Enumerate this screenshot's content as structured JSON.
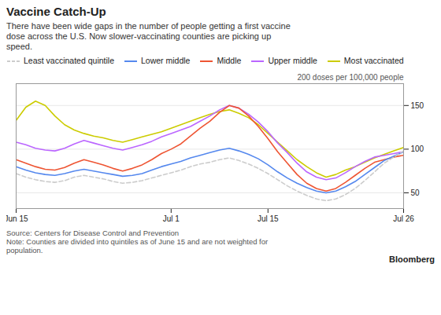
{
  "chart_data": {
    "type": "line",
    "title": "Vaccine Catch-Up",
    "subtitle": "There have been wide gaps in the number of people getting a first vaccine\ndose across the U.S. Now slower-vaccinating counties are picking up\nspeed.",
    "annotations": [
      "200 doses per 100,000 people"
    ],
    "source": "Source: Centers for Disease Control and Prevention",
    "note": "Note: Counties are divided into quintiles as of June 15 and are not weighted for\npopulation.",
    "credit": "Bloomberg",
    "x": [
      0,
      1,
      2,
      3,
      4,
      5,
      6,
      7,
      8,
      9,
      10,
      11,
      12,
      13,
      14,
      15,
      16,
      17,
      18,
      19,
      20,
      21,
      22,
      23,
      24,
      25,
      26,
      27,
      28,
      29,
      30,
      31,
      32,
      33,
      34,
      35,
      36,
      37,
      38,
      39,
      40
    ],
    "series": [
      {
        "name": "Least vaccinated quintile",
        "color": "#cccccc",
        "line_style": "dashed",
        "values": [
          72,
          68,
          65,
          63,
          62,
          64,
          68,
          70,
          68,
          66,
          63,
          61,
          62,
          64,
          67,
          70,
          73,
          76,
          80,
          83,
          85,
          88,
          90,
          87,
          83,
          78,
          72,
          65,
          58,
          52,
          47,
          43,
          41,
          43,
          48,
          55,
          64,
          74,
          84,
          91,
          98
        ]
      },
      {
        "name": "Lower middle",
        "color": "#5588ee",
        "values": [
          80,
          76,
          73,
          71,
          70,
          72,
          75,
          77,
          75,
          73,
          71,
          69,
          70,
          72,
          76,
          80,
          83,
          86,
          90,
          93,
          96,
          99,
          101,
          98,
          94,
          89,
          82,
          74,
          67,
          61,
          56,
          52,
          50,
          52,
          57,
          63,
          71,
          79,
          87,
          92,
          97
        ]
      },
      {
        "name": "Middle",
        "color": "#ee5533",
        "values": [
          88,
          84,
          80,
          77,
          76,
          79,
          84,
          88,
          85,
          82,
          78,
          75,
          78,
          82,
          88,
          95,
          100,
          106,
          115,
          124,
          132,
          142,
          150,
          147,
          138,
          126,
          112,
          97,
          84,
          71,
          61,
          55,
          52,
          55,
          62,
          70,
          78,
          85,
          88,
          91,
          93
        ]
      },
      {
        "name": "Upper middle",
        "color": "#bb66ff",
        "values": [
          108,
          105,
          101,
          99,
          98,
          101,
          106,
          110,
          107,
          104,
          101,
          99,
          102,
          105,
          109,
          114,
          118,
          122,
          126,
          132,
          138,
          145,
          150,
          147,
          140,
          131,
          120,
          107,
          96,
          84,
          74,
          68,
          65,
          67,
          73,
          80,
          86,
          91,
          93,
          95,
          97
        ]
      },
      {
        "name": "Most vaccinated",
        "color": "#cccc00",
        "values": [
          133,
          148,
          155,
          150,
          138,
          128,
          122,
          118,
          115,
          113,
          110,
          108,
          111,
          114,
          117,
          120,
          124,
          128,
          132,
          136,
          140,
          143,
          145,
          141,
          136,
          128,
          118,
          108,
          98,
          88,
          80,
          73,
          68,
          71,
          76,
          80,
          85,
          90,
          94,
          98,
          102
        ]
      }
    ],
    "xlim": [
      0,
      40
    ],
    "xticks": [
      {
        "value": 0,
        "label": "Jun 15"
      },
      {
        "value": 16,
        "label": "Jul 1"
      },
      {
        "value": 26,
        "label": "Jul 15"
      },
      {
        "value": 40,
        "label": "Jul 26"
      }
    ],
    "ylim": [
      32,
      175
    ],
    "yticks": [
      50,
      100,
      150
    ],
    "grid": true,
    "legend": "top"
  }
}
